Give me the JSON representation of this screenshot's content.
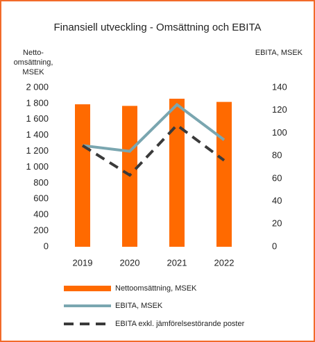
{
  "chart_data": {
    "type": "bar_line",
    "title": "Finansiell utveckling - Omsättning och EBITA",
    "y_label": [
      "Netto-",
      "omsättning,",
      "MSEK"
    ],
    "y2_label": "EBITA, MSEK",
    "categories": [
      "2019",
      "2020",
      "2021",
      "2022"
    ],
    "series": [
      {
        "name": "Nettoomsättning, MSEK",
        "type": "bar",
        "color": "#ff6a00",
        "values": [
          1790,
          1770,
          1860,
          1820
        ]
      },
      {
        "name": "EBITA, MSEK",
        "type": "line",
        "axis": "y2",
        "color": "#7aa6b0",
        "values": [
          89,
          84,
          125,
          94
        ]
      },
      {
        "name": "EBITA exkl. jämförelsestörande poster",
        "type": "line",
        "dash": true,
        "axis": "y2",
        "color": "#3a3a3a",
        "values": [
          89,
          63,
          107,
          76
        ]
      }
    ],
    "ylim": [
      0,
      2000
    ],
    "yticks": [
      0,
      200,
      400,
      600,
      800,
      {
        "value": 1000,
        "label": "1 000"
      },
      {
        "value": 1200,
        "label": "1 200"
      },
      {
        "value": 1400,
        "label": "1 400"
      },
      {
        "value": 1600,
        "label": "1 600"
      },
      {
        "value": 1800,
        "label": "1 800"
      },
      {
        "value": 2000,
        "label": "2 000"
      }
    ],
    "y2lim": [
      0,
      140
    ],
    "y2ticks": [
      0,
      20,
      40,
      60,
      80,
      100,
      120,
      140
    ]
  }
}
